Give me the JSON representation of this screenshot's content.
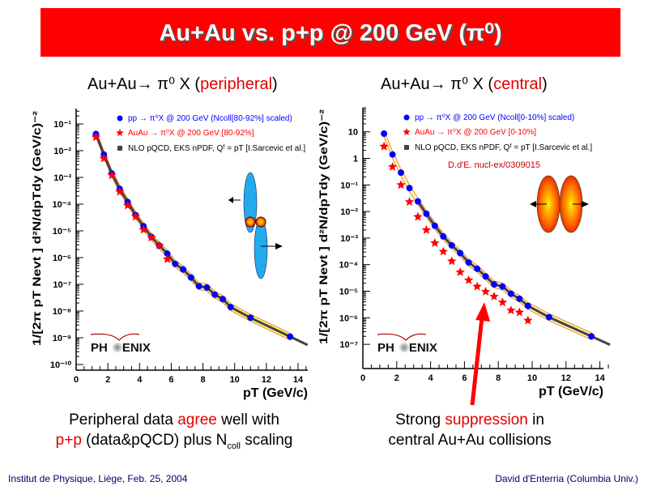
{
  "title": "Au+Au vs. p+p @ 200 GeV (π⁰)",
  "subtitles": [
    {
      "prefix": "Au+Au→ π⁰ X (",
      "highlight": "peripheral",
      "suffix": ")"
    },
    {
      "prefix": "Au+Au→ π⁰ X (",
      "highlight": "central",
      "suffix": ")"
    }
  ],
  "captions": {
    "left": {
      "l1a": "Peripheral data ",
      "l1b": "agree",
      "l1c": " well with",
      "l2a": "p+p",
      "l2b": " (data&pQCD) plus N",
      "l2sub": "coll",
      "l2c": " scaling"
    },
    "right": {
      "l1a": "Strong ",
      "l1b": "suppression",
      "l1c": " in",
      "l2": "central Au+Au collisions"
    }
  },
  "footer": {
    "left": "Institut de Physique, Liège, Feb. 25, 2004",
    "right": "David d'Enterria (Columbia Univ.)"
  },
  "colors": {
    "banner": "#ff0000",
    "pp": "#0000ff",
    "auau": "#ff0000",
    "theory": "#444444",
    "band": "#ffee44",
    "accent": "#e00000"
  },
  "chart_data": [
    {
      "type": "scatter",
      "yscale": "log",
      "xlim": [
        0,
        14.6
      ],
      "ylim": [
        6e-11,
        0.38
      ],
      "xlabel": "pT (GeV/c)",
      "ylabel": "1/[2π pT Nevt ] d²N/dpTdy (GeV/c)⁻²",
      "xticks": [
        "0",
        "2",
        "4",
        "6",
        "8",
        "10",
        "12",
        "14"
      ],
      "yticks": [
        "10⁻¹",
        "10⁻²",
        "10⁻³",
        "10⁻⁴",
        "10⁻⁵",
        "10⁻⁶",
        "10⁻⁷",
        "10⁻⁸",
        "10⁻⁹",
        "10⁻¹⁰"
      ],
      "legend_position": "top-right",
      "logo": "PHENIX",
      "series": [
        {
          "name": "pp → π⁰X @ 200 GeV (Ncoll[80-92%] scaled)",
          "marker": "circle",
          "x": [
            1.25,
            1.75,
            2.25,
            2.75,
            3.25,
            3.75,
            4.25,
            4.75,
            5.25,
            5.75,
            6.25,
            6.75,
            7.25,
            7.75,
            8.25,
            8.75,
            9.25,
            9.75,
            11,
            13.5
          ],
          "y": [
            0.042,
            0.0072,
            0.0014,
            0.00037,
            0.00012,
            3.9e-05,
            1.5e-05,
            5.9e-06,
            2.8e-06,
            1.4e-06,
            5.8e-07,
            3.6e-07,
            1.8e-07,
            8.5e-08,
            7.6e-08,
            4.1e-08,
            2.8e-08,
            1.4e-08,
            5.6e-09,
            1.1e-09
          ]
        },
        {
          "name": "AuAu → π⁰X @ 200 GeV [80-92%]",
          "marker": "star",
          "x": [
            1.25,
            1.75,
            2.25,
            2.75,
            3.25,
            3.75,
            4.25,
            4.75,
            5.25,
            5.75
          ],
          "y": [
            0.032,
            0.0051,
            0.0012,
            0.00029,
            8.9e-05,
            3.4e-05,
            1.1e-05,
            5.6e-06,
            2.8e-06,
            8.7e-07
          ]
        },
        {
          "name": "NLO pQCD, EKS nPDF, Qᶠ = pT [I.Sarcevic et al.]",
          "marker": "line"
        }
      ]
    },
    {
      "type": "scatter",
      "yscale": "log",
      "xlim": [
        0,
        14.6
      ],
      "ylim": [
        1.3e-08,
        80
      ],
      "xlabel": "pT (GeV/c)",
      "ylabel": "1/[2π pT Nevt ] d²N/dpTdy (GeV/c)⁻²",
      "xticks": [
        "0",
        "2",
        "4",
        "6",
        "8",
        "10",
        "12",
        "14"
      ],
      "yticks": [
        "10",
        "1",
        "10⁻¹",
        "10⁻²",
        "10⁻³",
        "10⁻⁴",
        "10⁻⁵",
        "10⁻⁶",
        "10⁻⁷"
      ],
      "legend_position": "top-right",
      "logo": "PHENIX",
      "annotation": "D.d'E. nucl-ex/0309015",
      "series": [
        {
          "name": "pp → π⁰X @ 200 GeV (Ncoll[0-10%] scaled)",
          "marker": "circle",
          "x": [
            1.25,
            1.75,
            2.25,
            2.75,
            3.25,
            3.75,
            4.25,
            4.75,
            5.25,
            5.75,
            6.25,
            6.75,
            7.25,
            7.75,
            8.25,
            8.75,
            9.25,
            9.75,
            11,
            13.5
          ],
          "y": [
            8.5,
            1.4,
            0.29,
            0.076,
            0.024,
            0.0082,
            0.0029,
            0.00115,
            0.00053,
            0.00027,
            0.00012,
            7e-05,
            3.6e-05,
            1.8e-05,
            1.5e-05,
            8e-06,
            5.2e-06,
            2.8e-06,
            1.05e-06,
            2e-07
          ]
        },
        {
          "name": "AuAu → π⁰X @ 200 GeV [0-10%]",
          "marker": "star",
          "x": [
            1.25,
            1.75,
            2.25,
            2.75,
            3.25,
            3.75,
            4.25,
            4.75,
            5.25,
            5.75,
            6.25,
            6.75,
            7.25,
            7.75,
            8.25,
            8.75,
            9.25,
            9.75
          ],
          "y": [
            2.8,
            0.48,
            0.1,
            0.023,
            0.0063,
            0.002,
            0.00065,
            0.00031,
            0.000135,
            5.2e-05,
            2.6e-05,
            1.5e-05,
            9.6e-06,
            6.3e-06,
            3.8e-06,
            1.9e-06,
            1.6e-06,
            7.9e-07
          ]
        },
        {
          "name": "NLO pQCD, EKS nPDF, Qᶠ = pT [I.Sarcevic et al.]",
          "marker": "line"
        }
      ]
    }
  ]
}
